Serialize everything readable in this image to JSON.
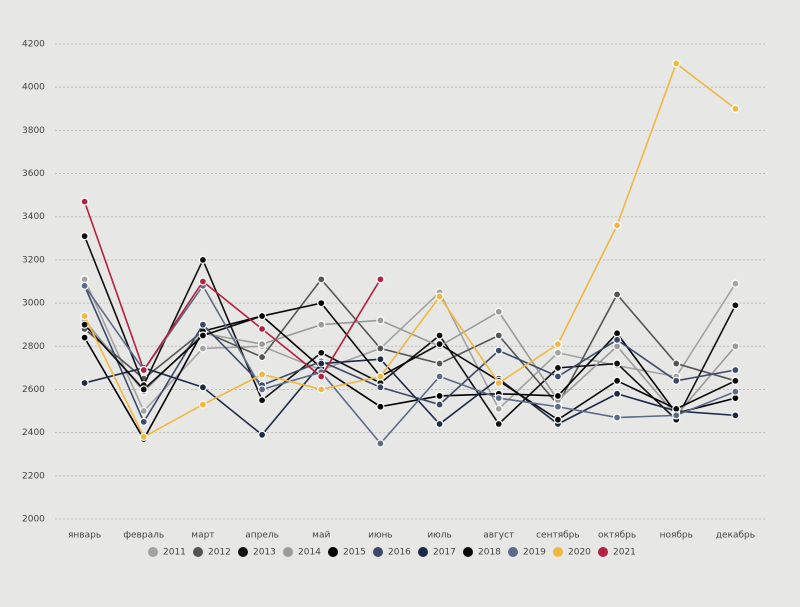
{
  "chart_data": {
    "type": "line",
    "categories": [
      "январь",
      "февраль",
      "март",
      "апрель",
      "май",
      "июнь",
      "июль",
      "август",
      "сентябрь",
      "октябрь",
      "ноябрь",
      "декабрь"
    ],
    "ylim": [
      2000,
      4200
    ],
    "yticks": [
      2000,
      2200,
      2400,
      2600,
      2800,
      3000,
      3200,
      3400,
      3600,
      3800,
      4000,
      4200
    ],
    "grid": true,
    "legend": "bottom",
    "series": [
      {
        "name": "2011",
        "color": "#a3a3a3",
        "values": [
          3110,
          2500,
          2790,
          2800,
          2690,
          2790,
          3050,
          2510,
          2770,
          2710,
          2660,
          3090
        ]
      },
      {
        "name": "2012",
        "color": "#555555",
        "values": [
          2880,
          2650,
          2870,
          2750,
          3110,
          2790,
          2720,
          2850,
          2530,
          3040,
          2720,
          2640
        ]
      },
      {
        "name": "2013",
        "color": "#111111",
        "values": [
          3310,
          2620,
          3200,
          2550,
          2770,
          2630,
          2850,
          2440,
          2700,
          2720,
          2460,
          2990
        ]
      },
      {
        "name": "2014",
        "color": "#9a9a9a",
        "values": [
          2920,
          2590,
          2860,
          2810,
          2900,
          2920,
          2800,
          2960,
          2550,
          2800,
          2480,
          2800
        ]
      },
      {
        "name": "2015",
        "color": "#000000",
        "values": [
          2840,
          2370,
          2870,
          2940,
          2700,
          2520,
          2570,
          2580,
          2570,
          2860,
          2490,
          2560
        ]
      },
      {
        "name": "2016",
        "color": "#3b4a68",
        "values": [
          3080,
          2450,
          2900,
          2620,
          2730,
          2610,
          2530,
          2780,
          2660,
          2830,
          2640,
          2690
        ]
      },
      {
        "name": "2017",
        "color": "#1c2a48",
        "values": [
          2630,
          2700,
          2610,
          2390,
          2720,
          2740,
          2440,
          2650,
          2440,
          2580,
          2500,
          2480
        ]
      },
      {
        "name": "2018",
        "color": "#0a0a0a",
        "values": [
          2900,
          2600,
          2850,
          2940,
          3000,
          2660,
          2810,
          2640,
          2460,
          2640,
          2510,
          2640
        ]
      },
      {
        "name": "2019",
        "color": "#5b6b88",
        "values": [
          3080,
          2690,
          3080,
          2600,
          2680,
          2350,
          2660,
          2560,
          2520,
          2470,
          2480,
          2590
        ]
      },
      {
        "name": "2020",
        "color": "#f0b840",
        "values": [
          2940,
          2380,
          2530,
          2670,
          2600,
          2660,
          3030,
          2630,
          2810,
          3360,
          4110,
          3900
        ]
      },
      {
        "name": "2021",
        "color": "#b3223e",
        "values": [
          3470,
          2690,
          3100,
          2880,
          2660,
          3110,
          null,
          null,
          null,
          null,
          null,
          null
        ]
      }
    ]
  }
}
